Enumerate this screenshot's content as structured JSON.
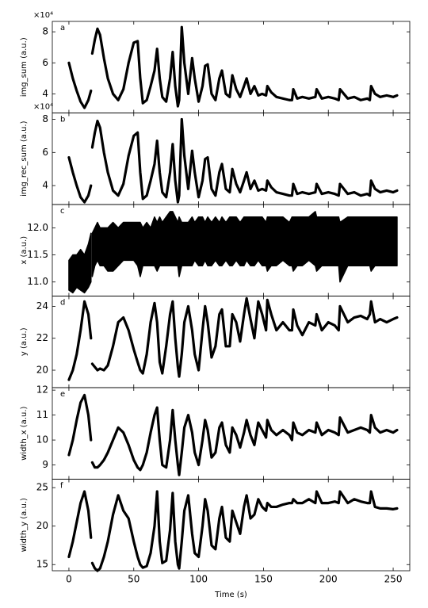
{
  "chart_data": [
    {
      "type": "line",
      "panel_label": "a",
      "ylabel": "img_sum (a.u.)",
      "offset_label": "×10⁴",
      "color": "#000000",
      "x": [
        0,
        3,
        6,
        9,
        12,
        15,
        17,
        17.5,
        18,
        20,
        22,
        24,
        27,
        30,
        34,
        38,
        42,
        46,
        50,
        53,
        55,
        57,
        60,
        63,
        66,
        68,
        70,
        72,
        75,
        78,
        80,
        82,
        84,
        85,
        87,
        89,
        92,
        95,
        97,
        100,
        103,
        105,
        107,
        110,
        113,
        116,
        118,
        121,
        124,
        126,
        129,
        132,
        135,
        137,
        140,
        143,
        146,
        149,
        152,
        153,
        156,
        160,
        165,
        170,
        172,
        173,
        176,
        180,
        185,
        190,
        191,
        195,
        200,
        205,
        208,
        209,
        215,
        220,
        225,
        230,
        232,
        233,
        236,
        240,
        245,
        250,
        253
      ],
      "values": [
        6.0,
        5.0,
        4.2,
        3.5,
        3.1,
        3.6,
        4.2,
        null,
        6.6,
        7.5,
        8.2,
        7.8,
        6.3,
        5.0,
        4.0,
        3.6,
        4.3,
        6.0,
        7.3,
        7.4,
        5.0,
        3.4,
        3.6,
        4.5,
        5.5,
        6.9,
        5.0,
        3.8,
        3.5,
        5.0,
        6.7,
        4.5,
        3.2,
        3.6,
        8.3,
        6.0,
        4.0,
        6.3,
        5.0,
        3.5,
        4.5,
        5.8,
        5.9,
        4.0,
        3.6,
        5.0,
        5.5,
        4.0,
        3.8,
        5.2,
        4.3,
        3.8,
        4.5,
        5.0,
        4.0,
        4.5,
        3.9,
        4.0,
        3.9,
        4.5,
        4.1,
        3.8,
        3.7,
        3.6,
        3.6,
        4.3,
        3.7,
        3.8,
        3.7,
        3.8,
        4.3,
        3.7,
        3.8,
        3.7,
        3.6,
        4.3,
        3.7,
        3.8,
        3.6,
        3.7,
        3.6,
        4.5,
        4.0,
        3.8,
        3.9,
        3.8,
        3.9
      ],
      "xlim": [
        -12.8,
        262.8
      ],
      "xticks": [
        0,
        50,
        100,
        150,
        200,
        250
      ],
      "ylim": [
        2.77,
        8.67
      ],
      "yticks": [
        4,
        6,
        8
      ]
    },
    {
      "type": "line",
      "panel_label": "b",
      "ylabel": "img_rec_sum (a.u.)",
      "offset_label": "×10⁴",
      "color": "#000000",
      "x": [
        0,
        3,
        6,
        9,
        12,
        15,
        17,
        17.5,
        18,
        20,
        22,
        24,
        27,
        30,
        34,
        38,
        42,
        46,
        50,
        53,
        55,
        57,
        60,
        63,
        66,
        68,
        70,
        72,
        75,
        78,
        80,
        82,
        84,
        85,
        87,
        89,
        92,
        95,
        97,
        100,
        103,
        105,
        107,
        110,
        113,
        116,
        118,
        121,
        124,
        126,
        129,
        132,
        135,
        137,
        140,
        143,
        146,
        149,
        152,
        153,
        156,
        160,
        165,
        170,
        172,
        173,
        176,
        180,
        185,
        190,
        191,
        195,
        200,
        205,
        208,
        209,
        215,
        220,
        225,
        230,
        232,
        233,
        236,
        240,
        245,
        250,
        253
      ],
      "values": [
        5.7,
        4.8,
        4.0,
        3.3,
        3.0,
        3.4,
        4.0,
        null,
        6.3,
        7.2,
        7.9,
        7.5,
        6.0,
        4.8,
        3.7,
        3.4,
        4.1,
        5.8,
        7.0,
        7.2,
        4.8,
        3.2,
        3.4,
        4.3,
        5.3,
        6.7,
        4.8,
        3.6,
        3.3,
        4.8,
        6.5,
        4.3,
        3.0,
        3.4,
        8.0,
        5.8,
        3.8,
        6.1,
        4.8,
        3.3,
        4.3,
        5.6,
        5.7,
        3.8,
        3.4,
        4.8,
        5.3,
        3.8,
        3.6,
        5.0,
        4.1,
        3.6,
        4.3,
        4.8,
        3.8,
        4.3,
        3.7,
        3.8,
        3.7,
        4.3,
        3.9,
        3.6,
        3.5,
        3.4,
        3.4,
        4.1,
        3.5,
        3.6,
        3.5,
        3.6,
        4.1,
        3.5,
        3.6,
        3.5,
        3.4,
        4.1,
        3.5,
        3.6,
        3.4,
        3.5,
        3.4,
        4.3,
        3.8,
        3.6,
        3.7,
        3.6,
        3.7
      ],
      "xlim": [
        -12.8,
        262.8
      ],
      "xticks": [
        0,
        50,
        100,
        150,
        200,
        250
      ],
      "ylim": [
        2.86,
        8.38
      ],
      "yticks": [
        4,
        6,
        8
      ]
    },
    {
      "type": "band",
      "panel_label": "c",
      "ylabel": "x (a.u.)",
      "color": "#000000",
      "x": [
        0,
        3,
        6,
        9,
        12,
        15,
        17,
        17.5,
        18,
        20,
        22,
        24,
        27,
        30,
        34,
        38,
        42,
        46,
        50,
        53,
        55,
        57,
        60,
        63,
        66,
        68,
        70,
        72,
        75,
        78,
        80,
        82,
        84,
        85,
        87,
        89,
        92,
        95,
        97,
        100,
        103,
        105,
        107,
        110,
        113,
        116,
        118,
        121,
        124,
        126,
        129,
        132,
        135,
        137,
        140,
        143,
        146,
        149,
        152,
        153,
        156,
        160,
        165,
        170,
        172,
        173,
        176,
        180,
        185,
        190,
        191,
        195,
        200,
        205,
        208,
        209,
        215,
        220,
        225,
        230,
        232,
        233,
        236,
        240,
        245,
        250,
        253
      ],
      "low": [
        10.85,
        10.8,
        10.9,
        10.85,
        10.8,
        10.9,
        11.0,
        null,
        11.1,
        11.3,
        11.4,
        11.3,
        11.3,
        11.2,
        11.2,
        11.3,
        11.4,
        11.4,
        11.4,
        11.3,
        11.1,
        11.3,
        11.3,
        11.3,
        11.3,
        11.2,
        11.3,
        11.3,
        11.3,
        11.3,
        11.3,
        11.3,
        11.3,
        11.1,
        11.3,
        11.3,
        11.3,
        11.3,
        11.4,
        11.3,
        11.3,
        11.4,
        11.3,
        11.3,
        11.4,
        11.3,
        11.3,
        11.4,
        11.3,
        11.3,
        11.4,
        11.3,
        11.3,
        11.4,
        11.3,
        11.3,
        11.4,
        11.3,
        11.3,
        11.2,
        11.3,
        11.3,
        11.4,
        11.3,
        11.3,
        11.2,
        11.3,
        11.3,
        11.4,
        11.3,
        11.2,
        11.3,
        11.3,
        11.3,
        11.3,
        11.0,
        11.3,
        11.3,
        11.3,
        11.3,
        11.3,
        11.2,
        11.3,
        11.3,
        11.3,
        11.3,
        11.3
      ],
      "high": [
        11.4,
        11.5,
        11.5,
        11.6,
        11.5,
        11.7,
        11.9,
        null,
        11.9,
        12.0,
        12.1,
        12.0,
        12.0,
        12.0,
        12.1,
        12.0,
        12.1,
        12.1,
        12.1,
        12.1,
        12.1,
        12.0,
        12.1,
        12.0,
        12.2,
        12.1,
        12.2,
        12.1,
        12.2,
        12.3,
        12.3,
        12.2,
        12.1,
        12.2,
        12.1,
        12.1,
        12.1,
        12.2,
        12.1,
        12.2,
        12.2,
        12.1,
        12.2,
        12.1,
        12.2,
        12.1,
        12.2,
        12.1,
        12.2,
        12.2,
        12.2,
        12.1,
        12.2,
        12.2,
        12.2,
        12.2,
        12.2,
        12.2,
        12.1,
        12.2,
        12.2,
        12.2,
        12.2,
        12.1,
        12.2,
        12.2,
        12.2,
        12.2,
        12.2,
        12.3,
        12.2,
        12.2,
        12.2,
        12.2,
        12.2,
        12.1,
        12.2,
        12.2,
        12.2,
        12.2,
        12.2,
        12.2,
        12.2,
        12.2,
        12.2,
        12.2,
        12.2
      ],
      "xlim": [
        -12.8,
        262.8
      ],
      "xticks": [
        0,
        50,
        100,
        150,
        200,
        250
      ],
      "ylim": [
        10.74,
        12.43
      ],
      "yticks": [
        {
          "value": 11,
          "label": "11.0"
        },
        11.5,
        {
          "value": 12,
          "label": "12.0"
        }
      ]
    },
    {
      "type": "line",
      "panel_label": "d",
      "ylabel": "y (a.u.)",
      "color": "#000000",
      "x": [
        0,
        3,
        6,
        9,
        12,
        15,
        17,
        17.5,
        18,
        20,
        22,
        24,
        27,
        30,
        34,
        38,
        42,
        46,
        50,
        53,
        55,
        57,
        60,
        63,
        66,
        68,
        70,
        72,
        75,
        78,
        80,
        82,
        84,
        85,
        87,
        89,
        92,
        95,
        97,
        100,
        103,
        105,
        107,
        110,
        113,
        116,
        118,
        121,
        124,
        126,
        129,
        132,
        135,
        137,
        140,
        143,
        146,
        149,
        152,
        153,
        156,
        160,
        165,
        170,
        172,
        173,
        176,
        180,
        185,
        190,
        191,
        195,
        200,
        205,
        208,
        209,
        215,
        220,
        225,
        230,
        232,
        233,
        236,
        240,
        245,
        250,
        253
      ],
      "values": [
        19.4,
        20.0,
        21.0,
        22.5,
        24.3,
        23.5,
        22.0,
        null,
        20.4,
        20.2,
        20.0,
        20.1,
        20.0,
        20.3,
        21.5,
        23.0,
        23.3,
        22.5,
        21.3,
        20.5,
        20.0,
        19.8,
        21.0,
        23.0,
        24.2,
        23.0,
        20.5,
        19.8,
        21.5,
        23.5,
        24.3,
        22.0,
        20.2,
        19.6,
        21.0,
        23.0,
        24.0,
        22.5,
        21.0,
        20.0,
        22.5,
        24.0,
        23.0,
        20.8,
        21.5,
        23.5,
        23.8,
        21.5,
        21.5,
        23.5,
        23.0,
        21.8,
        23.5,
        24.5,
        23.2,
        22.0,
        24.3,
        23.5,
        22.5,
        24.4,
        23.5,
        22.5,
        23.0,
        22.5,
        22.5,
        23.8,
        22.8,
        22.2,
        23.0,
        22.8,
        23.5,
        22.5,
        23.0,
        22.8,
        22.5,
        24.0,
        23.0,
        23.3,
        23.4,
        23.2,
        23.5,
        24.3,
        23.0,
        23.2,
        23.0,
        23.2,
        23.3
      ],
      "xlim": [
        -12.8,
        262.8
      ],
      "xticks": [
        0,
        50,
        100,
        150,
        200,
        250
      ],
      "ylim": [
        18.91,
        24.64
      ],
      "yticks": [
        20,
        22,
        24
      ]
    },
    {
      "type": "line",
      "panel_label": "e",
      "ylabel": "width_x (a.u.)",
      "color": "#000000",
      "x": [
        0,
        3,
        6,
        9,
        12,
        15,
        17,
        17.5,
        18,
        20,
        22,
        24,
        27,
        30,
        34,
        38,
        42,
        46,
        50,
        53,
        55,
        57,
        60,
        63,
        66,
        68,
        70,
        72,
        75,
        78,
        80,
        82,
        84,
        85,
        87,
        89,
        92,
        95,
        97,
        100,
        103,
        105,
        107,
        110,
        113,
        116,
        118,
        121,
        124,
        126,
        129,
        132,
        135,
        137,
        140,
        143,
        146,
        149,
        152,
        153,
        156,
        160,
        165,
        170,
        172,
        173,
        176,
        180,
        185,
        190,
        191,
        195,
        200,
        205,
        208,
        209,
        215,
        220,
        225,
        230,
        232,
        233,
        236,
        240,
        245,
        250,
        253
      ],
      "values": [
        9.4,
        10.0,
        10.8,
        11.5,
        11.8,
        11.0,
        10.0,
        null,
        9.1,
        8.9,
        8.9,
        9.0,
        9.2,
        9.5,
        10.0,
        10.5,
        10.3,
        9.8,
        9.2,
        8.9,
        8.8,
        9.0,
        9.5,
        10.3,
        11.0,
        11.3,
        10.0,
        9.0,
        8.9,
        10.0,
        11.2,
        10.0,
        9.0,
        8.6,
        9.5,
        10.5,
        11.0,
        10.3,
        9.5,
        9.0,
        10.0,
        10.8,
        10.4,
        9.3,
        9.5,
        10.5,
        10.7,
        9.8,
        9.5,
        10.5,
        10.2,
        9.7,
        10.3,
        10.8,
        10.2,
        9.8,
        10.7,
        10.4,
        10.1,
        10.8,
        10.4,
        10.2,
        10.4,
        10.2,
        10.0,
        10.7,
        10.3,
        10.2,
        10.4,
        10.3,
        10.7,
        10.2,
        10.4,
        10.3,
        10.2,
        10.9,
        10.3,
        10.4,
        10.5,
        10.4,
        10.3,
        11.0,
        10.5,
        10.3,
        10.4,
        10.3,
        10.4
      ],
      "xlim": [
        -12.8,
        262.8
      ],
      "xticks": [
        0,
        50,
        100,
        150,
        200,
        250
      ],
      "ylim": [
        8.43,
        12.1
      ],
      "yticks": [
        9,
        10,
        11,
        12
      ]
    },
    {
      "type": "line",
      "panel_label": "f",
      "ylabel": "width_y (a.u.)",
      "xlabel": "Time (s)",
      "color": "#000000",
      "x": [
        0,
        3,
        6,
        9,
        12,
        15,
        17,
        17.5,
        18,
        20,
        22,
        24,
        27,
        30,
        34,
        38,
        42,
        46,
        50,
        53,
        55,
        57,
        60,
        63,
        66,
        68,
        70,
        72,
        75,
        78,
        80,
        82,
        84,
        85,
        87,
        89,
        92,
        95,
        97,
        100,
        103,
        105,
        107,
        110,
        113,
        116,
        118,
        121,
        124,
        126,
        129,
        132,
        135,
        137,
        140,
        143,
        146,
        149,
        152,
        153,
        156,
        160,
        165,
        170,
        172,
        173,
        176,
        180,
        185,
        190,
        191,
        195,
        200,
        205,
        208,
        209,
        215,
        220,
        225,
        230,
        232,
        233,
        236,
        240,
        245,
        250,
        253
      ],
      "values": [
        16.0,
        18.0,
        20.5,
        23.0,
        24.5,
        22.0,
        18.5,
        null,
        15.2,
        14.5,
        14.2,
        14.5,
        16.0,
        18.0,
        21.5,
        24.0,
        22.0,
        21.0,
        18.0,
        16.0,
        15.0,
        14.6,
        14.8,
        16.5,
        20.0,
        24.5,
        18.0,
        15.2,
        15.5,
        19.5,
        24.3,
        18.0,
        15.0,
        14.5,
        18.0,
        22.0,
        24.0,
        19.0,
        16.5,
        16.0,
        20.0,
        23.5,
        22.0,
        17.5,
        17.0,
        21.0,
        22.5,
        18.5,
        18.0,
        22.0,
        20.5,
        19.0,
        22.5,
        24.0,
        21.0,
        21.5,
        23.5,
        22.5,
        22.0,
        23.0,
        22.5,
        22.5,
        22.8,
        23.0,
        23.0,
        23.5,
        23.0,
        23.0,
        23.5,
        23.0,
        24.5,
        23.0,
        23.0,
        23.2,
        23.0,
        24.5,
        23.0,
        23.5,
        23.2,
        23.0,
        23.0,
        24.5,
        22.5,
        22.3,
        22.3,
        22.2,
        22.3
      ],
      "xlim": [
        -12.8,
        262.8
      ],
      "xticks": [
        0,
        50,
        100,
        150,
        200,
        250
      ],
      "ylim": [
        14.2,
        26.1
      ],
      "yticks": [
        15,
        20,
        25
      ]
    }
  ]
}
